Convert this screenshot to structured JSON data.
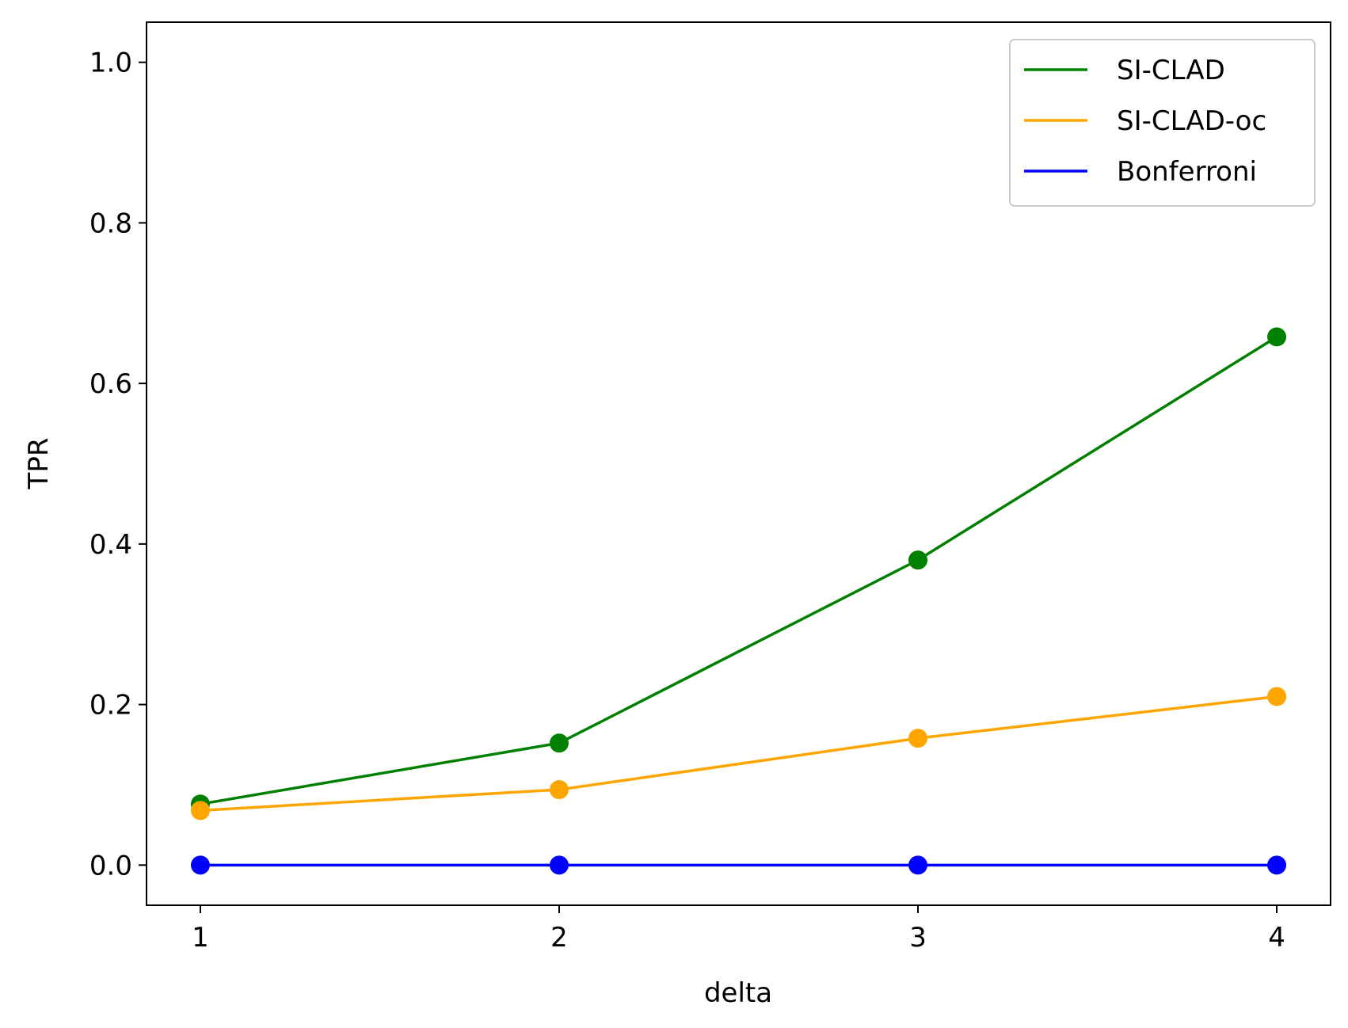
{
  "chart_data": {
    "type": "line",
    "xlabel": "delta",
    "ylabel": "TPR",
    "x": [
      1,
      2,
      3,
      4
    ],
    "xlim": [
      0.85,
      4.15
    ],
    "ylim": [
      -0.05,
      1.05
    ],
    "xticks": [
      "1",
      "2",
      "3",
      "4"
    ],
    "yticks": [
      "0.0",
      "0.2",
      "0.4",
      "0.6",
      "0.8",
      "1.0"
    ],
    "grid": false,
    "legend_position": "top-right",
    "series": [
      {
        "name": "SI-CLAD",
        "color": "#008000",
        "values": [
          0.076,
          0.152,
          0.38,
          0.658
        ]
      },
      {
        "name": "SI-CLAD-oc",
        "color": "#ffa500",
        "values": [
          0.068,
          0.094,
          0.158,
          0.21
        ]
      },
      {
        "name": "Bonferroni",
        "color": "#0000ff",
        "values": [
          0.0,
          0.0,
          0.0,
          0.0
        ]
      }
    ]
  }
}
